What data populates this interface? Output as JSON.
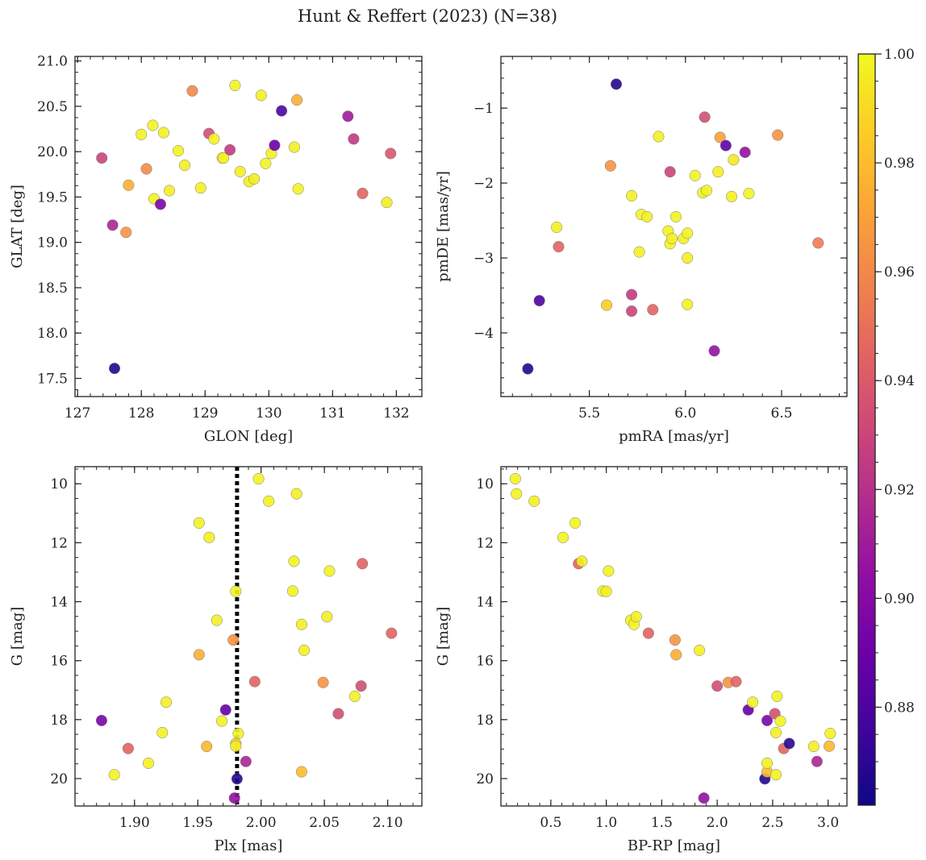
{
  "title": "Hunt & Reffert (2023) (N=38)",
  "colorbar": {
    "ticks": [
      0.88,
      0.9,
      0.92,
      0.94,
      0.96,
      0.98,
      1.0
    ],
    "tick_labels": [
      "0.88",
      "0.90",
      "0.92",
      "0.94",
      "0.96",
      "0.98",
      "1.00"
    ],
    "range": [
      0.862,
      1.0
    ],
    "colormap": "plasma"
  },
  "chart_data": [
    {
      "type": "scatter",
      "xlabel": "GLON [deg]",
      "ylabel": "GLAT [deg]",
      "xlim": [
        126.96,
        132.4
      ],
      "ylim": [
        17.3,
        21.05
      ],
      "y_inverted": false,
      "xticks": [
        127,
        128,
        129,
        130,
        131,
        132
      ],
      "xtick_labels": [
        "127",
        "128",
        "129",
        "130",
        "131",
        "132"
      ],
      "yticks": [
        17.5,
        18.0,
        18.5,
        19.0,
        19.5,
        20.0,
        20.5,
        21.0
      ],
      "ytick_labels": [
        "17.5",
        "18.0",
        "18.5",
        "19.0",
        "19.5",
        "20.0",
        "20.5",
        "21.0"
      ],
      "points": [
        {
          "x": 127.38,
          "y": 19.93,
          "c": 0.93
        },
        {
          "x": 127.55,
          "y": 19.19,
          "c": 0.915
        },
        {
          "x": 127.58,
          "y": 17.61,
          "c": 0.868
        },
        {
          "x": 127.76,
          "y": 19.11,
          "c": 0.965
        },
        {
          "x": 127.8,
          "y": 19.63,
          "c": 0.975
        },
        {
          "x": 128.0,
          "y": 20.19,
          "c": 0.998
        },
        {
          "x": 128.08,
          "y": 19.81,
          "c": 0.962
        },
        {
          "x": 128.18,
          "y": 20.29,
          "c": 0.998
        },
        {
          "x": 128.2,
          "y": 19.48,
          "c": 0.998
        },
        {
          "x": 128.3,
          "y": 19.42,
          "c": 0.895
        },
        {
          "x": 128.35,
          "y": 20.21,
          "c": 0.997
        },
        {
          "x": 128.44,
          "y": 19.57,
          "c": 0.996
        },
        {
          "x": 128.58,
          "y": 20.01,
          "c": 0.998
        },
        {
          "x": 128.68,
          "y": 19.85,
          "c": 0.996
        },
        {
          "x": 128.8,
          "y": 20.67,
          "c": 0.96
        },
        {
          "x": 128.93,
          "y": 19.6,
          "c": 0.997
        },
        {
          "x": 129.06,
          "y": 20.2,
          "c": 0.935
        },
        {
          "x": 129.14,
          "y": 20.14,
          "c": 0.998
        },
        {
          "x": 129.27,
          "y": 19.93,
          "c": 0.997
        },
        {
          "x": 129.29,
          "y": 19.93,
          "c": 0.998
        },
        {
          "x": 129.39,
          "y": 20.02,
          "c": 0.925
        },
        {
          "x": 129.47,
          "y": 20.73,
          "c": 0.998
        },
        {
          "x": 129.55,
          "y": 19.78,
          "c": 0.997
        },
        {
          "x": 129.69,
          "y": 19.67,
          "c": 0.997
        },
        {
          "x": 129.77,
          "y": 19.7,
          "c": 0.996
        },
        {
          "x": 129.88,
          "y": 20.62,
          "c": 0.997
        },
        {
          "x": 129.95,
          "y": 19.87,
          "c": 0.998
        },
        {
          "x": 130.04,
          "y": 19.98,
          "c": 0.997
        },
        {
          "x": 130.09,
          "y": 20.07,
          "c": 0.89
        },
        {
          "x": 130.2,
          "y": 20.45,
          "c": 0.88
        },
        {
          "x": 130.4,
          "y": 20.05,
          "c": 0.997
        },
        {
          "x": 130.44,
          "y": 20.57,
          "c": 0.975
        },
        {
          "x": 130.46,
          "y": 19.59,
          "c": 0.998
        },
        {
          "x": 131.24,
          "y": 20.39,
          "c": 0.91
        },
        {
          "x": 131.33,
          "y": 20.14,
          "c": 0.925
        },
        {
          "x": 131.47,
          "y": 19.54,
          "c": 0.945
        },
        {
          "x": 131.85,
          "y": 19.44,
          "c": 0.996
        },
        {
          "x": 131.91,
          "y": 19.98,
          "c": 0.938
        }
      ]
    },
    {
      "type": "scatter",
      "xlabel": "pmRA [mas/yr]",
      "ylabel": "pmDE [mas/yr]",
      "xlim": [
        5.04,
        6.84
      ],
      "ylim": [
        -4.85,
        -0.31
      ],
      "y_inverted": false,
      "xticks": [
        5.5,
        6.0,
        6.5
      ],
      "xtick_labels": [
        "5.5",
        "6.0",
        "6.5"
      ],
      "yticks": [
        -4,
        -3,
        -2,
        -1
      ],
      "ytick_labels": [
        "−4",
        "−3",
        "−2",
        "−1"
      ],
      "points": [
        {
          "x": 5.18,
          "y": -4.48,
          "c": 0.868
        },
        {
          "x": 5.24,
          "y": -3.57,
          "c": 0.88
        },
        {
          "x": 5.33,
          "y": -2.59,
          "c": 0.997
        },
        {
          "x": 5.34,
          "y": -2.85,
          "c": 0.945
        },
        {
          "x": 5.59,
          "y": -3.63,
          "c": 0.985
        },
        {
          "x": 5.61,
          "y": -1.77,
          "c": 0.965
        },
        {
          "x": 5.64,
          "y": -0.68,
          "c": 0.868
        },
        {
          "x": 5.72,
          "y": -3.49,
          "c": 0.925
        },
        {
          "x": 5.72,
          "y": -3.71,
          "c": 0.93
        },
        {
          "x": 5.72,
          "y": -2.17,
          "c": 0.997
        },
        {
          "x": 5.76,
          "y": -2.92,
          "c": 0.997
        },
        {
          "x": 5.77,
          "y": -2.42,
          "c": 0.998
        },
        {
          "x": 5.8,
          "y": -2.45,
          "c": 0.997
        },
        {
          "x": 5.83,
          "y": -3.69,
          "c": 0.945
        },
        {
          "x": 5.86,
          "y": -1.38,
          "c": 0.997
        },
        {
          "x": 5.91,
          "y": -2.64,
          "c": 0.998
        },
        {
          "x": 5.92,
          "y": -2.81,
          "c": 0.998
        },
        {
          "x": 5.92,
          "y": -1.85,
          "c": 0.93
        },
        {
          "x": 5.93,
          "y": -2.74,
          "c": 0.997
        },
        {
          "x": 5.95,
          "y": -2.45,
          "c": 0.998
        },
        {
          "x": 5.99,
          "y": -2.74,
          "c": 0.997
        },
        {
          "x": 6.01,
          "y": -2.67,
          "c": 0.998
        },
        {
          "x": 6.01,
          "y": -3.0,
          "c": 0.997
        },
        {
          "x": 6.01,
          "y": -3.62,
          "c": 0.998
        },
        {
          "x": 6.05,
          "y": -1.9,
          "c": 0.998
        },
        {
          "x": 6.09,
          "y": -2.13,
          "c": 0.997
        },
        {
          "x": 6.1,
          "y": -1.12,
          "c": 0.935
        },
        {
          "x": 6.11,
          "y": -2.1,
          "c": 0.998
        },
        {
          "x": 6.15,
          "y": -4.24,
          "c": 0.905
        },
        {
          "x": 6.17,
          "y": -1.85,
          "c": 0.997
        },
        {
          "x": 6.18,
          "y": -1.39,
          "c": 0.97
        },
        {
          "x": 6.21,
          "y": -1.5,
          "c": 0.885
        },
        {
          "x": 6.24,
          "y": -2.18,
          "c": 0.997
        },
        {
          "x": 6.25,
          "y": -1.69,
          "c": 0.995
        },
        {
          "x": 6.31,
          "y": -1.59,
          "c": 0.905
        },
        {
          "x": 6.33,
          "y": -2.14,
          "c": 0.998
        },
        {
          "x": 6.48,
          "y": -1.36,
          "c": 0.965
        },
        {
          "x": 6.69,
          "y": -2.8,
          "c": 0.955
        }
      ]
    },
    {
      "type": "scatter",
      "xlabel": "Plx [mas]",
      "ylabel": "G [mag]",
      "xlim": [
        1.853,
        2.127
      ],
      "ylim": [
        20.93,
        9.42
      ],
      "y_inverted": true,
      "xticks": [
        1.9,
        1.95,
        2.0,
        2.05,
        2.1
      ],
      "xtick_labels": [
        "1.90",
        "1.95",
        "2.00",
        "2.05",
        "2.10"
      ],
      "yticks": [
        10,
        12,
        14,
        16,
        18,
        20
      ],
      "ytick_labels": [
        "10",
        "12",
        "14",
        "16",
        "18",
        "20"
      ],
      "vline": 1.981,
      "points": [
        {
          "x": 1.874,
          "y": 18.03,
          "c": 0.895
        },
        {
          "x": 1.884,
          "y": 19.87,
          "c": 0.998
        },
        {
          "x": 1.895,
          "y": 18.98,
          "c": 0.945
        },
        {
          "x": 1.911,
          "y": 19.48,
          "c": 0.997
        },
        {
          "x": 1.922,
          "y": 18.44,
          "c": 0.998
        },
        {
          "x": 1.925,
          "y": 17.41,
          "c": 0.997
        },
        {
          "x": 1.951,
          "y": 11.33,
          "c": 0.998
        },
        {
          "x": 1.951,
          "y": 15.8,
          "c": 0.975
        },
        {
          "x": 1.957,
          "y": 18.91,
          "c": 0.978
        },
        {
          "x": 1.959,
          "y": 11.82,
          "c": 0.997
        },
        {
          "x": 1.965,
          "y": 14.63,
          "c": 0.997
        },
        {
          "x": 1.969,
          "y": 18.05,
          "c": 0.998
        },
        {
          "x": 1.972,
          "y": 17.67,
          "c": 0.888
        },
        {
          "x": 1.978,
          "y": 15.3,
          "c": 0.965
        },
        {
          "x": 1.979,
          "y": 20.66,
          "c": 0.905
        },
        {
          "x": 1.98,
          "y": 13.65,
          "c": 0.998
        },
        {
          "x": 1.98,
          "y": 18.81,
          "c": 0.985
        },
        {
          "x": 1.98,
          "y": 18.9,
          "c": 0.997
        },
        {
          "x": 1.981,
          "y": 20.01,
          "c": 0.868
        },
        {
          "x": 1.982,
          "y": 18.47,
          "c": 0.998
        },
        {
          "x": 1.988,
          "y": 19.42,
          "c": 0.915
        },
        {
          "x": 1.995,
          "y": 16.71,
          "c": 0.945
        },
        {
          "x": 1.998,
          "y": 9.83,
          "c": 0.998
        },
        {
          "x": 2.006,
          "y": 10.59,
          "c": 0.998
        },
        {
          "x": 2.025,
          "y": 13.64,
          "c": 0.998
        },
        {
          "x": 2.026,
          "y": 12.63,
          "c": 0.998
        },
        {
          "x": 2.028,
          "y": 10.34,
          "c": 0.997
        },
        {
          "x": 2.032,
          "y": 14.77,
          "c": 0.997
        },
        {
          "x": 2.032,
          "y": 19.77,
          "c": 0.98
        },
        {
          "x": 2.034,
          "y": 15.65,
          "c": 0.997
        },
        {
          "x": 2.049,
          "y": 16.74,
          "c": 0.965
        },
        {
          "x": 2.052,
          "y": 14.51,
          "c": 0.997
        },
        {
          "x": 2.054,
          "y": 12.96,
          "c": 0.998
        },
        {
          "x": 2.061,
          "y": 17.8,
          "c": 0.935
        },
        {
          "x": 2.074,
          "y": 17.21,
          "c": 0.998
        },
        {
          "x": 2.079,
          "y": 16.86,
          "c": 0.935
        },
        {
          "x": 2.08,
          "y": 12.71,
          "c": 0.945
        },
        {
          "x": 2.103,
          "y": 15.07,
          "c": 0.945
        }
      ]
    },
    {
      "type": "scatter",
      "xlabel": "BP-RP [mag]",
      "ylabel": "G [mag]",
      "xlim": [
        0.05,
        3.17
      ],
      "ylim": [
        20.93,
        9.42
      ],
      "y_inverted": true,
      "xticks": [
        0.5,
        1.0,
        1.5,
        2.0,
        2.5,
        3.0
      ],
      "xtick_labels": [
        "0.5",
        "1.0",
        "1.5",
        "2.0",
        "2.5",
        "3.0"
      ],
      "yticks": [
        10,
        12,
        14,
        16,
        18,
        20
      ],
      "ytick_labels": [
        "10",
        "12",
        "14",
        "16",
        "18",
        "20"
      ],
      "points": [
        {
          "x": 0.18,
          "y": 9.83,
          "c": 0.998
        },
        {
          "x": 0.19,
          "y": 10.34,
          "c": 0.998
        },
        {
          "x": 0.35,
          "y": 10.59,
          "c": 0.997
        },
        {
          "x": 0.61,
          "y": 11.82,
          "c": 0.998
        },
        {
          "x": 0.72,
          "y": 11.33,
          "c": 0.998
        },
        {
          "x": 0.75,
          "y": 12.71,
          "c": 0.945
        },
        {
          "x": 0.78,
          "y": 12.63,
          "c": 0.997
        },
        {
          "x": 0.97,
          "y": 13.64,
          "c": 0.998
        },
        {
          "x": 1.0,
          "y": 13.65,
          "c": 0.997
        },
        {
          "x": 1.02,
          "y": 12.96,
          "c": 0.998
        },
        {
          "x": 1.22,
          "y": 14.63,
          "c": 0.997
        },
        {
          "x": 1.25,
          "y": 14.77,
          "c": 0.998
        },
        {
          "x": 1.27,
          "y": 14.51,
          "c": 0.997
        },
        {
          "x": 1.38,
          "y": 15.07,
          "c": 0.945
        },
        {
          "x": 1.62,
          "y": 15.3,
          "c": 0.965
        },
        {
          "x": 1.63,
          "y": 15.8,
          "c": 0.975
        },
        {
          "x": 1.84,
          "y": 15.65,
          "c": 0.997
        },
        {
          "x": 1.88,
          "y": 20.66,
          "c": 0.905
        },
        {
          "x": 2.0,
          "y": 16.86,
          "c": 0.935
        },
        {
          "x": 2.1,
          "y": 16.74,
          "c": 0.965
        },
        {
          "x": 2.17,
          "y": 16.71,
          "c": 0.945
        },
        {
          "x": 2.28,
          "y": 17.67,
          "c": 0.888
        },
        {
          "x": 2.32,
          "y": 17.41,
          "c": 0.998
        },
        {
          "x": 2.43,
          "y": 20.01,
          "c": 0.868
        },
        {
          "x": 2.45,
          "y": 18.03,
          "c": 0.895
        },
        {
          "x": 2.45,
          "y": 19.77,
          "c": 0.98
        },
        {
          "x": 2.45,
          "y": 19.48,
          "c": 0.997
        },
        {
          "x": 2.52,
          "y": 17.8,
          "c": 0.935
        },
        {
          "x": 2.53,
          "y": 19.87,
          "c": 0.998
        },
        {
          "x": 2.53,
          "y": 18.44,
          "c": 0.997
        },
        {
          "x": 2.54,
          "y": 17.21,
          "c": 0.998
        },
        {
          "x": 2.57,
          "y": 18.05,
          "c": 0.998
        },
        {
          "x": 2.6,
          "y": 18.98,
          "c": 0.945
        },
        {
          "x": 2.65,
          "y": 18.81,
          "c": 0.87
        },
        {
          "x": 2.87,
          "y": 18.91,
          "c": 0.997
        },
        {
          "x": 2.9,
          "y": 19.42,
          "c": 0.915
        },
        {
          "x": 3.01,
          "y": 18.9,
          "c": 0.978
        },
        {
          "x": 3.02,
          "y": 18.47,
          "c": 0.998
        }
      ]
    }
  ]
}
